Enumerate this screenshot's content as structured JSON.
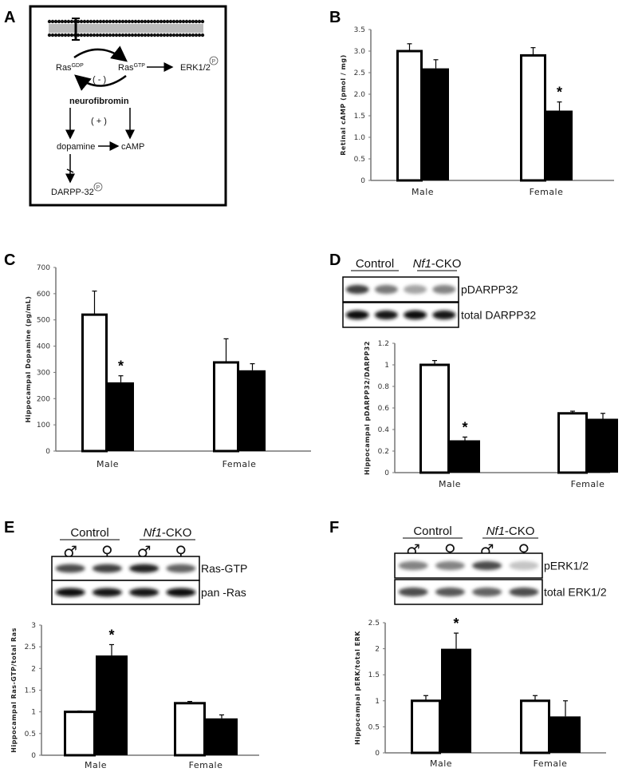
{
  "panel_labels": {
    "a": "A",
    "b": "B",
    "c": "C",
    "d": "D",
    "e": "E",
    "f": "F"
  },
  "diagram": {
    "ras_gdp": "Ras",
    "ras_gdp_sup": "GDP",
    "ras_gtp": "Ras",
    "ras_gtp_sup": "GTP",
    "erk": "ERK1/2",
    "phospho": "P",
    "minus": "( - )",
    "neurofibromin": "neurofibromin",
    "plus": "( + )",
    "dopamine": "dopamine",
    "camp": "cAMP",
    "darpp": "DARPP-32"
  },
  "blots": {
    "d": {
      "group1": "Control",
      "group2_italic": "Nf1",
      "group2_rest": "-CKO",
      "symbols": [
        "♂",
        "♀",
        "♂",
        "♀"
      ],
      "rows": [
        {
          "label": "pDARPP32",
          "intensity": [
            0.75,
            0.5,
            0.3,
            0.45
          ]
        },
        {
          "label": "total DARPP32",
          "intensity": [
            1,
            0.95,
            1,
            0.95
          ]
        }
      ]
    },
    "e": {
      "group1": "Control",
      "group2_italic": "Nf1",
      "group2_rest": "-CKO",
      "symbols": [
        "♂",
        "♀",
        "♂",
        "♀"
      ],
      "rows": [
        {
          "label": "Ras-GTP",
          "intensity": [
            0.7,
            0.75,
            0.9,
            0.6
          ]
        },
        {
          "label": "pan -Ras",
          "intensity": [
            1,
            0.95,
            0.95,
            1
          ]
        }
      ]
    },
    "f": {
      "group1": "Control",
      "group2_italic": "Nf1",
      "group2_rest": "-CKO",
      "symbols": [
        "♂",
        "♀",
        "♂",
        "♀"
      ],
      "rows": [
        {
          "label": "pERK1/2",
          "intensity": [
            0.45,
            0.45,
            0.7,
            0.15
          ]
        },
        {
          "label": "total ERK1/2",
          "intensity": [
            0.7,
            0.65,
            0.6,
            0.7
          ]
        }
      ]
    }
  },
  "chart_data": [
    {
      "id": "b",
      "type": "bar",
      "title": "",
      "xlabel": "",
      "ylabel": "Retinal cAMP  (pmol / mg)",
      "categories": [
        "Male",
        "Female"
      ],
      "ylim": [
        0,
        3.5
      ],
      "yticks": [
        "0",
        "0.5",
        "1.0",
        "1.5",
        "2.0",
        "2.5",
        "3.0",
        "3.5"
      ],
      "series": [
        {
          "fill": "#ffffff",
          "values": [
            3.0,
            2.9
          ],
          "errors": [
            0.17,
            0.18
          ]
        },
        {
          "fill": "#000000",
          "values": [
            2.6,
            1.62
          ],
          "errors": [
            0.2,
            0.2
          ]
        }
      ],
      "significance": [
        {
          "category": "Female",
          "series": 1,
          "mark": "*"
        }
      ]
    },
    {
      "id": "c",
      "type": "bar",
      "title": "",
      "xlabel": "",
      "ylabel": "Hippocampal Dopamine (pg/mL)",
      "categories": [
        "Male",
        "Female"
      ],
      "ylim": [
        0,
        700
      ],
      "yticks": [
        "0",
        "100",
        "200",
        "300",
        "400",
        "500",
        "600",
        "700"
      ],
      "series": [
        {
          "fill": "#ffffff",
          "values": [
            520,
            338
          ],
          "errors": [
            90,
            90
          ]
        },
        {
          "fill": "#000000",
          "values": [
            262,
            308
          ],
          "errors": [
            25,
            25
          ]
        }
      ],
      "significance": [
        {
          "category": "Male",
          "series": 1,
          "mark": "*"
        }
      ]
    },
    {
      "id": "d",
      "type": "bar",
      "title": "",
      "xlabel": "",
      "ylabel": "Hippocampal pDARPP32/DARPP32",
      "categories": [
        "Male",
        "Female"
      ],
      "ylim": [
        0,
        1.2
      ],
      "yticks": [
        "0",
        "0.2",
        "0.4",
        "0.6",
        "0.8",
        "1",
        "1.2"
      ],
      "series": [
        {
          "fill": "#ffffff",
          "values": [
            1.0,
            0.55
          ],
          "errors": [
            0.04,
            0.02
          ]
        },
        {
          "fill": "#000000",
          "values": [
            0.3,
            0.5
          ],
          "errors": [
            0.03,
            0.05
          ]
        }
      ],
      "significance": [
        {
          "category": "Male",
          "series": 1,
          "mark": "*"
        }
      ]
    },
    {
      "id": "e",
      "type": "bar",
      "title": "",
      "xlabel": "",
      "ylabel": "Hippocampal Ras-GTP/total Ras",
      "categories": [
        "Male",
        "Female"
      ],
      "ylim": [
        0,
        3
      ],
      "yticks": [
        "0",
        "0.5",
        "1",
        "1.5",
        "2",
        "2.5",
        "3"
      ],
      "series": [
        {
          "fill": "#ffffff",
          "values": [
            1.0,
            1.2
          ],
          "errors": [
            0.02,
            0.04
          ]
        },
        {
          "fill": "#000000",
          "values": [
            2.3,
            0.85
          ],
          "errors": [
            0.25,
            0.08
          ]
        }
      ],
      "significance": [
        {
          "category": "Male",
          "series": 1,
          "mark": "*"
        }
      ]
    },
    {
      "id": "f",
      "type": "bar",
      "title": "",
      "xlabel": "",
      "ylabel": "Hippocampal pERK/total ERK",
      "categories": [
        "Male",
        "Female"
      ],
      "ylim": [
        0,
        2.5
      ],
      "yticks": [
        "0",
        "0.5",
        "1",
        "1.5",
        "2",
        "2.5"
      ],
      "series": [
        {
          "fill": "#ffffff",
          "values": [
            1.0,
            1.0
          ],
          "errors": [
            0.1,
            0.1
          ]
        },
        {
          "fill": "#000000",
          "values": [
            2.0,
            0.7
          ],
          "errors": [
            0.3,
            0.3
          ]
        }
      ],
      "significance": [
        {
          "category": "Male",
          "series": 1,
          "mark": "*"
        }
      ]
    }
  ]
}
